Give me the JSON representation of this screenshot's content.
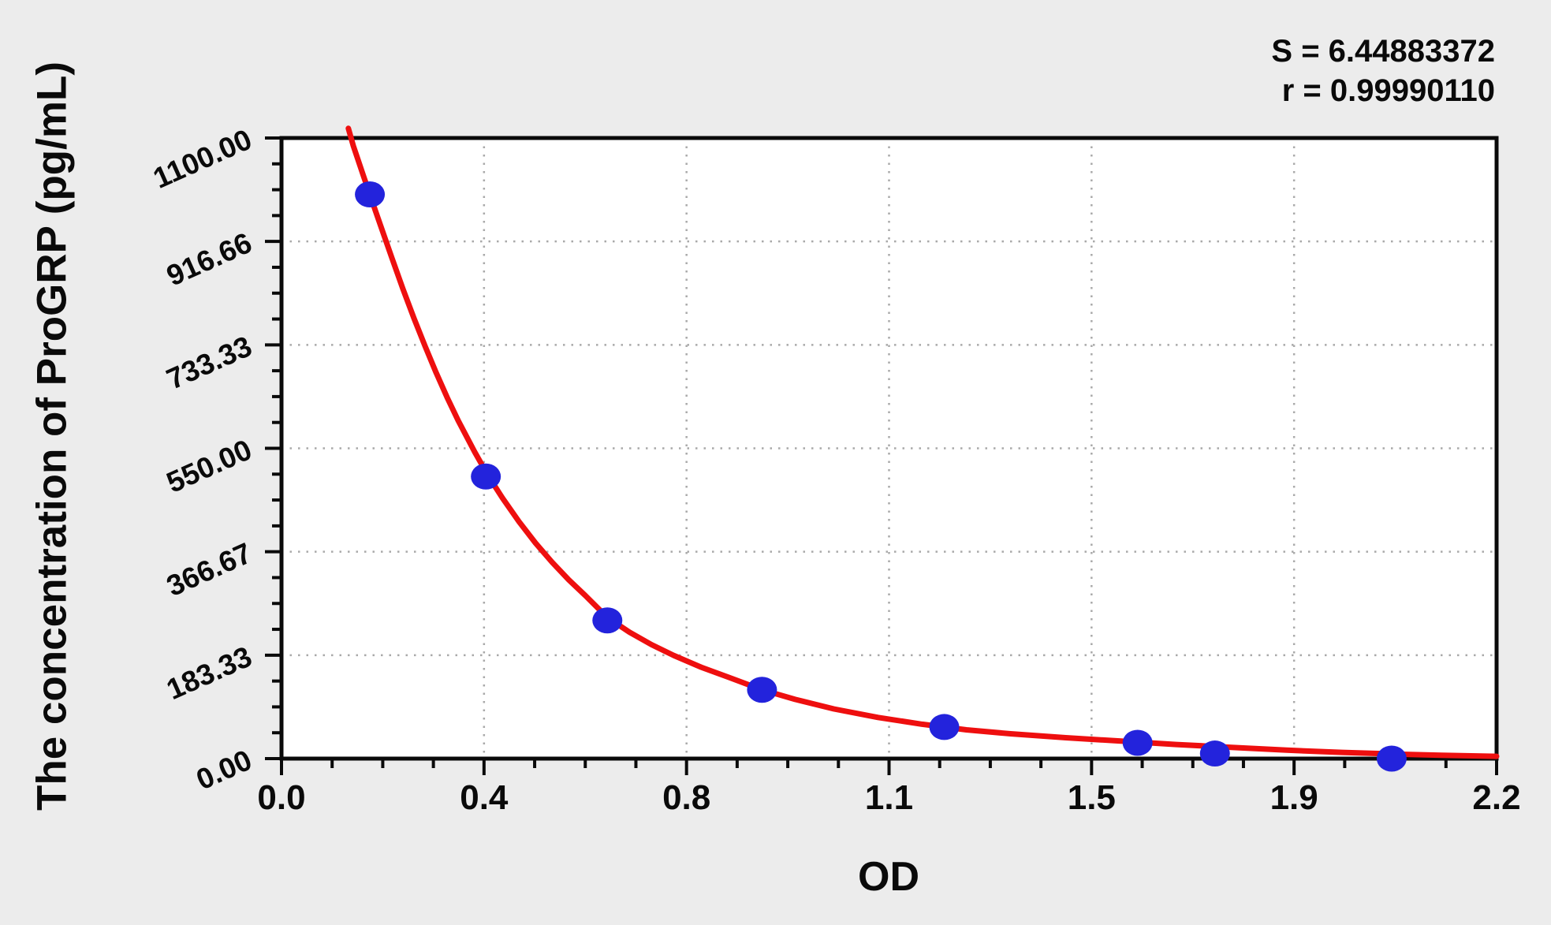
{
  "stats": {
    "s_label": "S = 6.44883372",
    "r_label": "r = 0.99990110"
  },
  "chart_data": {
    "type": "scatter",
    "xlabel": "OD",
    "ylabel": "The concentration of ProGRP (pg/mL)",
    "xlim": [
      0,
      2.2
    ],
    "ylim": [
      0,
      1100
    ],
    "x_tick_labels": [
      "0.0",
      "0.4",
      "0.8",
      "1.1",
      "1.5",
      "1.9",
      "2.2"
    ],
    "y_tick_labels": [
      "0.00",
      "183.33",
      "366.67",
      "550.00",
      "733.33",
      "916.66",
      "1100.00"
    ],
    "minor_ticks_between_majors": 3,
    "grid": "dotted-at-major-ticks",
    "legend": "none",
    "annotations": {
      "S": "6.44883372",
      "r": "0.99990110"
    },
    "colors": {
      "background": "#ececec",
      "plot_background": "#ffffff",
      "frame": "#0a0a0a",
      "grid": "#a9a9a9",
      "point": "#2323dc",
      "curve": "#ee0f0f"
    },
    "series": [
      {
        "name": "standard-points",
        "type": "scatter",
        "color": "#2323dc",
        "x": [
          0.16,
          0.37,
          0.59,
          0.87,
          1.2,
          1.55,
          1.69,
          2.01
        ],
        "y": [
          1000,
          500,
          245,
          122,
          56,
          28,
          9,
          0
        ]
      },
      {
        "name": "fitted-curve",
        "type": "line",
        "color": "#ee0f0f",
        "points": [
          [
            0.121,
            1117
          ],
          [
            0.13,
            1086
          ],
          [
            0.14,
            1057
          ],
          [
            0.15,
            1028
          ],
          [
            0.16,
            1000
          ],
          [
            0.17,
            971
          ],
          [
            0.18,
            943
          ],
          [
            0.19,
            915
          ],
          [
            0.2,
            887
          ],
          [
            0.22,
            832
          ],
          [
            0.24,
            780
          ],
          [
            0.26,
            731
          ],
          [
            0.28,
            684
          ],
          [
            0.3,
            640
          ],
          [
            0.32,
            599
          ],
          [
            0.35,
            543
          ],
          [
            0.375,
            500
          ],
          [
            0.4,
            462
          ],
          [
            0.43,
            420
          ],
          [
            0.46,
            382
          ],
          [
            0.49,
            348
          ],
          [
            0.52,
            317
          ],
          [
            0.55,
            289
          ],
          [
            0.59,
            250
          ],
          [
            0.63,
            224
          ],
          [
            0.67,
            202
          ],
          [
            0.71,
            183
          ],
          [
            0.76,
            162
          ],
          [
            0.81,
            144
          ],
          [
            0.87,
            122
          ],
          [
            0.93,
            105
          ],
          [
            1.0,
            88
          ],
          [
            1.08,
            73
          ],
          [
            1.16,
            61
          ],
          [
            1.24,
            51
          ],
          [
            1.32,
            44
          ],
          [
            1.42,
            37
          ],
          [
            1.52,
            31
          ],
          [
            1.62,
            25
          ],
          [
            1.72,
            20
          ],
          [
            1.82,
            15
          ],
          [
            1.92,
            11
          ],
          [
            2.02,
            8
          ],
          [
            2.1,
            6
          ],
          [
            2.2,
            4
          ]
        ]
      }
    ]
  }
}
